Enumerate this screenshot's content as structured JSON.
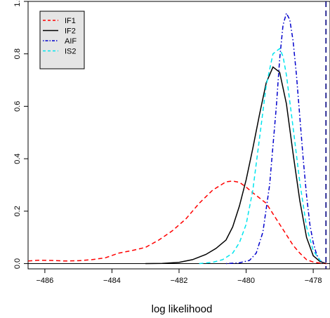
{
  "chart_data": {
    "type": "line",
    "title": "",
    "xlabel": "log likelihood",
    "ylabel": "",
    "xlim": [
      -486.5,
      -477.5
    ],
    "ylim": [
      -0.02,
      1.0
    ],
    "xticks": [
      -486,
      -484,
      -482,
      -480,
      -478
    ],
    "xtick_labels": [
      "−486",
      "−484",
      "−482",
      "−480",
      "−478"
    ],
    "yticks": [
      0.0,
      0.2,
      0.4,
      0.6,
      0.8,
      1.0
    ],
    "ytick_labels": [
      "0.0",
      "0.2",
      "0.4",
      "0.6",
      "0.8",
      "1.0"
    ],
    "grid": false,
    "legend_position": "top-left",
    "reference_lines": [
      {
        "orientation": "horizontal",
        "value": 0.0,
        "color": "#000000",
        "style": "solid"
      },
      {
        "orientation": "vertical",
        "value": -477.62,
        "color": "#000080",
        "style": "dashed"
      }
    ],
    "series": [
      {
        "name": "IF1",
        "color": "#ff0000",
        "style": "dashed",
        "x": [
          -486.5,
          -486.2,
          -485.8,
          -485.4,
          -485.0,
          -484.6,
          -484.2,
          -483.8,
          -483.4,
          -483.0,
          -482.6,
          -482.2,
          -481.8,
          -481.4,
          -481.0,
          -480.6,
          -480.4,
          -480.2,
          -480.0,
          -479.8,
          -479.6,
          -479.4,
          -479.2,
          -479.0,
          -478.8,
          -478.6,
          -478.4,
          -478.2,
          -478.0,
          -477.8,
          -477.6
        ],
        "y": [
          0.01,
          0.013,
          0.012,
          0.01,
          0.011,
          0.015,
          0.022,
          0.04,
          0.05,
          0.062,
          0.09,
          0.125,
          0.17,
          0.23,
          0.28,
          0.312,
          0.315,
          0.31,
          0.292,
          0.27,
          0.25,
          0.23,
          0.19,
          0.15,
          0.11,
          0.07,
          0.04,
          0.015,
          0.006,
          0.002,
          0.0
        ]
      },
      {
        "name": "IF2",
        "color": "#000000",
        "style": "solid",
        "x": [
          -483.0,
          -482.5,
          -482.0,
          -481.6,
          -481.2,
          -480.9,
          -480.6,
          -480.4,
          -480.2,
          -480.0,
          -479.8,
          -479.6,
          -479.4,
          -479.2,
          -479.0,
          -478.8,
          -478.6,
          -478.4,
          -478.2,
          -478.0,
          -477.8,
          -477.62
        ],
        "y": [
          0.0,
          0.001,
          0.005,
          0.015,
          0.035,
          0.058,
          0.09,
          0.14,
          0.22,
          0.32,
          0.44,
          0.57,
          0.69,
          0.75,
          0.73,
          0.61,
          0.42,
          0.24,
          0.1,
          0.03,
          0.008,
          0.0
        ]
      },
      {
        "name": "AIF",
        "color": "#0000cc",
        "style": "dotdash",
        "x": [
          -480.6,
          -480.2,
          -479.9,
          -479.7,
          -479.5,
          -479.3,
          -479.1,
          -479.0,
          -478.9,
          -478.8,
          -478.7,
          -478.6,
          -478.5,
          -478.4,
          -478.3,
          -478.2,
          -478.1,
          -478.0,
          -477.9,
          -477.8,
          -477.7
        ],
        "y": [
          0.0,
          0.003,
          0.012,
          0.04,
          0.12,
          0.3,
          0.6,
          0.78,
          0.91,
          0.955,
          0.93,
          0.85,
          0.72,
          0.56,
          0.4,
          0.26,
          0.15,
          0.08,
          0.035,
          0.012,
          0.003
        ]
      },
      {
        "name": "IS2",
        "color": "#00e5ee",
        "style": "dashed",
        "x": [
          -481.4,
          -481.0,
          -480.7,
          -480.4,
          -480.2,
          -480.0,
          -479.8,
          -479.6,
          -479.4,
          -479.2,
          -479.0,
          -478.9,
          -478.8,
          -478.6,
          -478.4,
          -478.2,
          -478.0,
          -477.8,
          -477.7
        ],
        "y": [
          0.0,
          0.005,
          0.015,
          0.04,
          0.08,
          0.15,
          0.28,
          0.48,
          0.68,
          0.8,
          0.82,
          0.79,
          0.72,
          0.52,
          0.31,
          0.14,
          0.05,
          0.012,
          0.004
        ]
      }
    ]
  }
}
